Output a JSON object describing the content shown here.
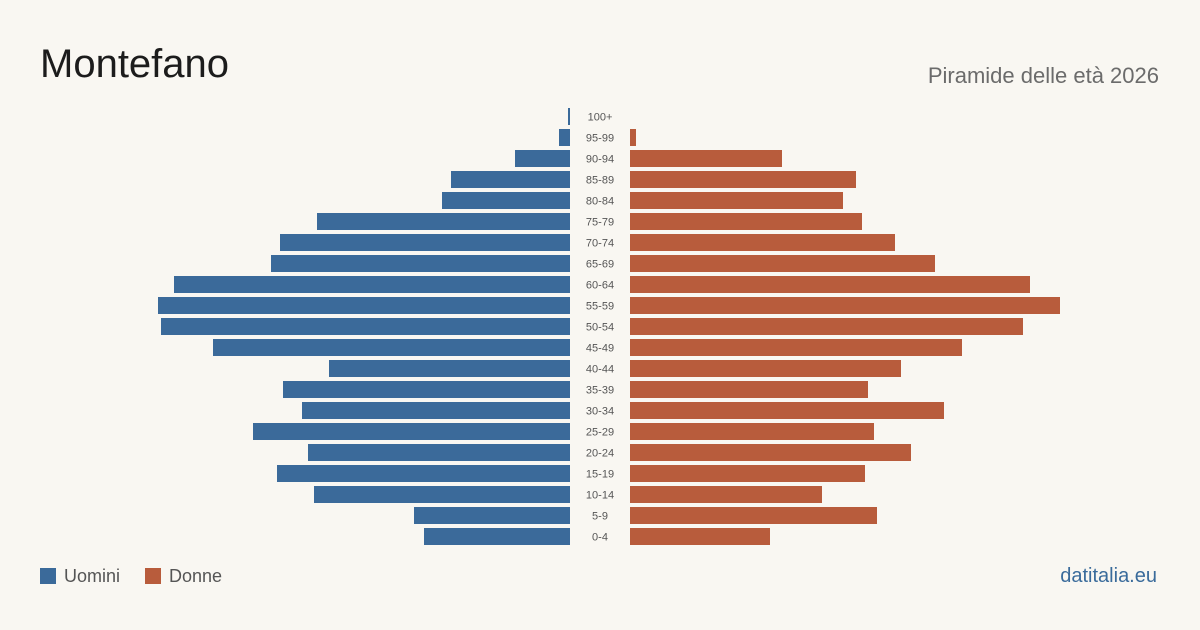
{
  "header": {
    "title": "Montefano",
    "subtitle": "Piramide delle età 2026"
  },
  "legend": {
    "items": [
      {
        "label": "Uomini",
        "color": "#3b6a9a"
      },
      {
        "label": "Donne",
        "color": "#b85c3c"
      }
    ]
  },
  "footer": {
    "site": "datitalia.eu"
  },
  "chart_data": {
    "type": "bar",
    "orientation": "horizontal",
    "categories": [
      "0-4",
      "5-9",
      "10-14",
      "15-19",
      "20-24",
      "25-29",
      "30-34",
      "35-39",
      "40-44",
      "45-49",
      "50-54",
      "55-59",
      "60-64",
      "65-69",
      "70-74",
      "75-79",
      "80-84",
      "85-89",
      "90-94",
      "95-99",
      "100+"
    ],
    "series": [
      {
        "name": "Uomini",
        "color": "#3b6a9a",
        "values": [
          146,
          156,
          256,
          293,
          262,
          317,
          268,
          287,
          241,
          357,
          409,
          412,
          396,
          299,
          290,
          253,
          128,
          119,
          55,
          11,
          2
        ]
      },
      {
        "name": "Donne",
        "color": "#b85c3c",
        "values": [
          140,
          247,
          192,
          235,
          281,
          244,
          314,
          238,
          271,
          332,
          393,
          430,
          400,
          305,
          265,
          232,
          213,
          226,
          152,
          6,
          0
        ]
      }
    ],
    "xlim": [
      0,
      430
    ],
    "axis_labels_shown": false,
    "grid": false,
    "legend_position": "bottom-left"
  }
}
